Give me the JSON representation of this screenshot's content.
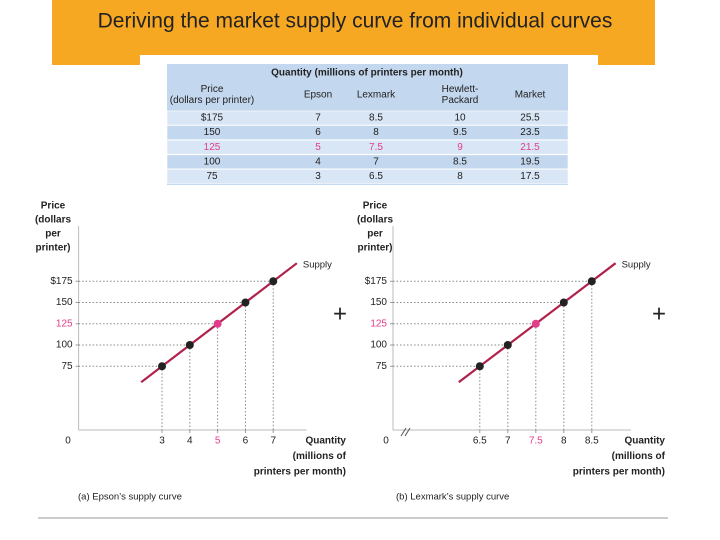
{
  "header": {
    "title": "Deriving the market supply curve from individual curves"
  },
  "table": {
    "caption": "Quantity (millions of printers per month)",
    "columns": [
      [
        "Price",
        "(dollars per printer)"
      ],
      [
        "Epson"
      ],
      [
        "Lexmark"
      ],
      [
        "Hewlett-",
        "Packard"
      ],
      [
        "Market"
      ]
    ],
    "rows": [
      [
        "$175",
        "7",
        "8.5",
        "10",
        "25.5"
      ],
      [
        "150",
        "6",
        "8",
        "9.5",
        "23.5"
      ],
      [
        "125",
        "5",
        "7.5",
        "9",
        "21.5"
      ],
      [
        "100",
        "4",
        "7",
        "8.5",
        "19.5"
      ],
      [
        "75",
        "3",
        "6.5",
        "8",
        "17.5"
      ]
    ],
    "highlight_row": 2,
    "highlight_color": "#e23d8c"
  },
  "operators": [
    "+",
    "+"
  ],
  "chart_data": [
    {
      "type": "line",
      "caption": "(a) Epson’s supply curve",
      "ylabel": [
        "Price",
        "(dollars",
        "per",
        "printer)"
      ],
      "xlabel": [
        "Quantity",
        "(millions of",
        "printers per month)"
      ],
      "origin_label": "0",
      "series_label": "Supply",
      "x": [
        3,
        4,
        5,
        6,
        7
      ],
      "values": [
        75,
        100,
        125,
        150,
        175
      ],
      "color": "#b0224a",
      "point_colors": [
        "#222222",
        "#222222",
        "#e23d8c",
        "#222222",
        "#222222"
      ],
      "xlim": [
        0,
        8.2
      ],
      "xticks": [
        3,
        4,
        5,
        6,
        7
      ],
      "ylim": [
        0,
        240
      ],
      "yticks": [
        75,
        100,
        125,
        150,
        {
          "value": 175,
          "label": "$175"
        }
      ]
    },
    {
      "type": "line",
      "caption": "(b) Lexmark’s supply curve",
      "ylabel": [
        "Price",
        "(dollars",
        "per",
        "printer)"
      ],
      "xlabel": [
        "Quantity",
        "(millions of",
        "printers per month)"
      ],
      "origin_label": "0",
      "series_label": "Supply",
      "x": [
        6.5,
        7,
        7.5,
        8,
        8.5
      ],
      "values": [
        75,
        100,
        125,
        150,
        175
      ],
      "color": "#b0224a",
      "point_colors": [
        "#222222",
        "#222222",
        "#e23d8c",
        "#222222",
        "#222222"
      ],
      "xlim": [
        4.95,
        9.2
      ],
      "xticks": [
        6.5,
        7,
        7.5,
        8,
        8.5
      ],
      "ylim": [
        0,
        240
      ],
      "yticks": [
        75,
        100,
        125,
        150,
        {
          "value": 175,
          "label": "$175"
        }
      ]
    }
  ]
}
